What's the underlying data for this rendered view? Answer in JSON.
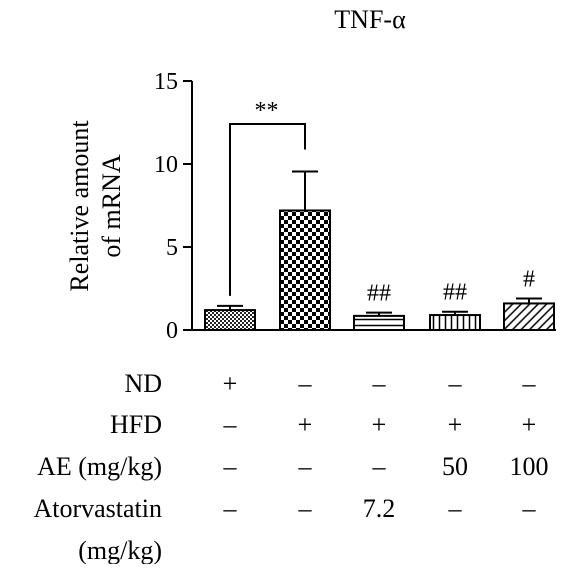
{
  "chart_data": {
    "type": "bar",
    "title": "TNF-α",
    "xlabel": "",
    "ylabel": "Relative amount of mRNA",
    "ylabel_lines": [
      "Relative amount",
      "of mRNA"
    ],
    "ylim": [
      0,
      15
    ],
    "yticks": [
      "0",
      "5",
      "10",
      "15"
    ],
    "grid": false,
    "categories": [
      "1",
      "2",
      "3",
      "4",
      "5"
    ],
    "values": [
      1.2,
      7.2,
      0.85,
      0.9,
      1.6
    ],
    "errors": [
      0.25,
      2.35,
      0.2,
      0.2,
      0.3
    ],
    "significance_bar": {
      "from": 0,
      "to": 1,
      "label": "**"
    },
    "markers": [
      "",
      "",
      "##",
      "##",
      "#"
    ],
    "row_labels": [
      "ND",
      "HFD",
      "AE (mg/kg)",
      "Atorvastatin",
      "(mg/kg)"
    ],
    "conditions": [
      [
        "+",
        "–",
        "–",
        "–",
        "–"
      ],
      [
        "–",
        "+",
        "+",
        "+",
        "+"
      ],
      [
        "–",
        "–",
        "–",
        "50",
        "100"
      ],
      [
        "–",
        "–",
        "7.2",
        "–",
        "–"
      ]
    ],
    "patterns": [
      "dense-check",
      "checker",
      "horizontal-lines",
      "vertical-lines",
      "diagonal-lines"
    ]
  }
}
